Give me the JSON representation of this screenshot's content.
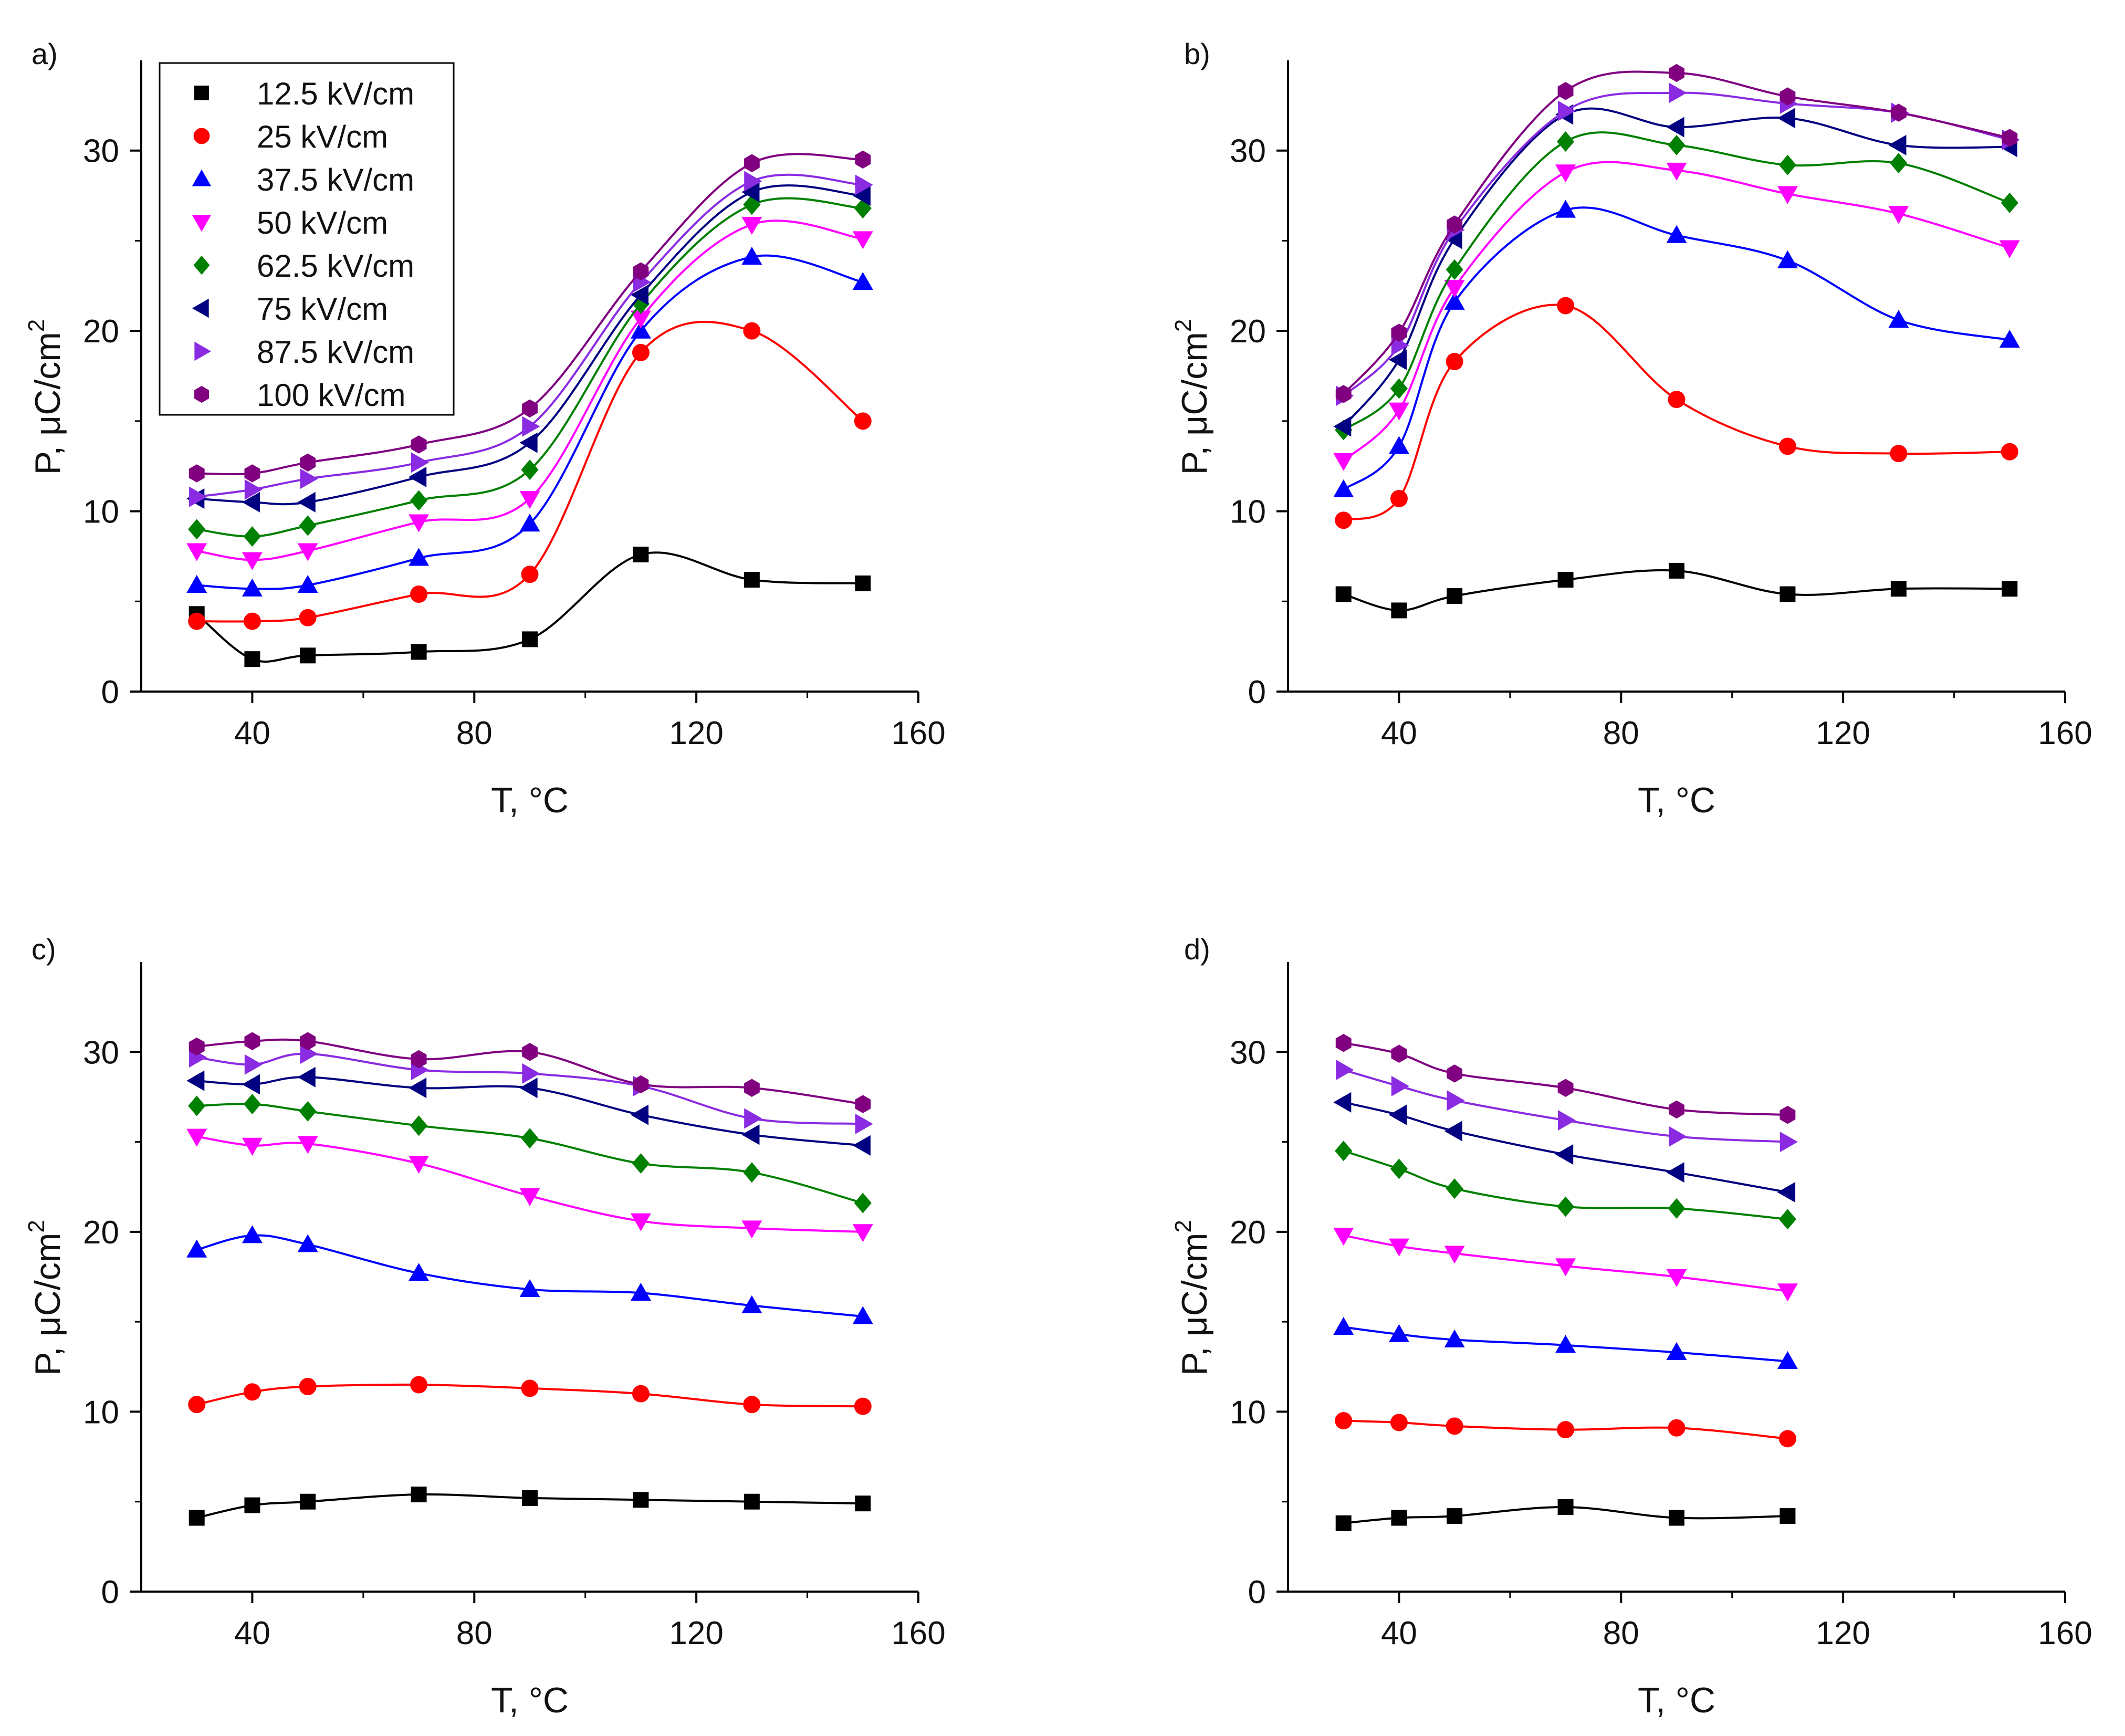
{
  "figure": {
    "legend_series": [
      {
        "name": "12.5 kV/cm",
        "color": "#000000",
        "marker": "square"
      },
      {
        "name": "25 kV/cm",
        "color": "#ff0000",
        "marker": "circle"
      },
      {
        "name": "37.5 kV/cm",
        "color": "#0000ff",
        "marker": "triangle-up"
      },
      {
        "name": "50 kV/cm",
        "color": "#ff00ff",
        "marker": "triangle-down"
      },
      {
        "name": "62.5 kV/cm",
        "color": "#008000",
        "marker": "diamond"
      },
      {
        "name": "75 kV/cm",
        "color": "#000080",
        "marker": "triangle-left"
      },
      {
        "name": "87.5 kV/cm",
        "color": "#8a2be2",
        "marker": "triangle-right"
      },
      {
        "name": "100 kV/cm",
        "color": "#800080",
        "marker": "hexagon"
      }
    ]
  },
  "chart_data": [
    {
      "panel": "a)",
      "type": "scatter",
      "xlabel": "T, °C",
      "ylabel": "P, μC/cm2",
      "xlim": [
        20,
        160
      ],
      "ylim": [
        0,
        35
      ],
      "xticks": [
        40,
        80,
        120,
        160
      ],
      "yticks": [
        0,
        10,
        20,
        30
      ],
      "legend": "top-left",
      "series": [
        {
          "name": "12.5 kV/cm",
          "x": [
            30,
            40,
            50,
            70,
            90,
            110,
            130,
            150
          ],
          "values": [
            4.3,
            1.8,
            2.0,
            2.2,
            2.9,
            7.6,
            6.2,
            6.0
          ]
        },
        {
          "name": "25 kV/cm",
          "x": [
            30,
            40,
            50,
            70,
            90,
            110,
            130,
            150
          ],
          "values": [
            3.9,
            3.9,
            4.1,
            5.4,
            6.5,
            18.8,
            20.0,
            15.0
          ]
        },
        {
          "name": "37.5 kV/cm",
          "x": [
            30,
            40,
            50,
            70,
            90,
            110,
            130,
            150
          ],
          "values": [
            5.9,
            5.7,
            5.9,
            7.4,
            9.3,
            20.0,
            24.1,
            22.7
          ]
        },
        {
          "name": "50 kV/cm",
          "x": [
            30,
            40,
            50,
            70,
            90,
            110,
            130,
            150
          ],
          "values": [
            7.8,
            7.3,
            7.8,
            9.4,
            10.7,
            20.7,
            25.9,
            25.1
          ]
        },
        {
          "name": "62.5 kV/cm",
          "x": [
            30,
            40,
            50,
            70,
            90,
            110,
            130,
            150
          ],
          "values": [
            9.0,
            8.6,
            9.2,
            10.6,
            12.3,
            21.5,
            27.0,
            26.8
          ]
        },
        {
          "name": "75 kV/cm",
          "x": [
            30,
            40,
            50,
            70,
            90,
            110,
            130,
            150
          ],
          "values": [
            10.7,
            10.5,
            10.5,
            11.9,
            13.8,
            22.0,
            27.7,
            27.5
          ]
        },
        {
          "name": "87.5 kV/cm",
          "x": [
            30,
            40,
            50,
            70,
            90,
            110,
            130,
            150
          ],
          "values": [
            10.8,
            11.2,
            11.8,
            12.7,
            14.7,
            22.7,
            28.3,
            28.1
          ]
        },
        {
          "name": "100 kV/cm",
          "x": [
            30,
            40,
            50,
            70,
            90,
            110,
            130,
            150
          ],
          "values": [
            12.1,
            12.1,
            12.7,
            13.7,
            15.7,
            23.3,
            29.3,
            29.5
          ]
        }
      ]
    },
    {
      "panel": "b)",
      "type": "scatter",
      "xlabel": "T, °C",
      "ylabel": "P, μC/cm2",
      "xlim": [
        20,
        160
      ],
      "ylim": [
        0,
        35
      ],
      "xticks": [
        40,
        80,
        120,
        160
      ],
      "yticks": [
        0,
        10,
        20,
        30
      ],
      "series": [
        {
          "name": "12.5 kV/cm",
          "x": [
            30,
            40,
            50,
            70,
            90,
            110,
            130,
            150
          ],
          "values": [
            5.4,
            4.5,
            5.3,
            6.2,
            6.7,
            5.4,
            5.7,
            5.7
          ]
        },
        {
          "name": "25 kV/cm",
          "x": [
            30,
            40,
            50,
            70,
            90,
            110,
            130,
            150
          ],
          "values": [
            9.5,
            10.7,
            18.3,
            21.4,
            16.2,
            13.6,
            13.2,
            13.3
          ]
        },
        {
          "name": "37.5 kV/cm",
          "x": [
            30,
            40,
            50,
            70,
            90,
            110,
            130,
            150
          ],
          "values": [
            11.2,
            13.6,
            21.6,
            26.7,
            25.3,
            23.9,
            20.6,
            19.5
          ]
        },
        {
          "name": "50 kV/cm",
          "x": [
            30,
            40,
            50,
            70,
            90,
            110,
            130,
            150
          ],
          "values": [
            12.8,
            15.6,
            22.4,
            28.8,
            28.9,
            27.6,
            26.5,
            24.6
          ]
        },
        {
          "name": "62.5 kV/cm",
          "x": [
            30,
            40,
            50,
            70,
            90,
            110,
            130,
            150
          ],
          "values": [
            14.5,
            16.8,
            23.4,
            30.5,
            30.3,
            29.2,
            29.3,
            27.1
          ]
        },
        {
          "name": "75 kV/cm",
          "x": [
            30,
            40,
            50,
            70,
            90,
            110,
            130,
            150
          ],
          "values": [
            14.7,
            18.4,
            25.1,
            32.0,
            31.3,
            31.8,
            30.3,
            30.2
          ]
        },
        {
          "name": "87.5 kV/cm",
          "x": [
            30,
            40,
            50,
            70,
            90,
            110,
            130,
            150
          ],
          "values": [
            16.4,
            19.2,
            25.6,
            32.2,
            33.2,
            32.6,
            32.1,
            30.6
          ]
        },
        {
          "name": "100 kV/cm",
          "x": [
            30,
            40,
            50,
            70,
            90,
            110,
            130,
            150
          ],
          "values": [
            16.5,
            19.9,
            25.9,
            33.3,
            34.3,
            33.0,
            32.1,
            30.7
          ]
        }
      ]
    },
    {
      "panel": "c)",
      "type": "scatter",
      "xlabel": "T, °C",
      "ylabel": "P, μC/cm2",
      "xlim": [
        20,
        160
      ],
      "ylim": [
        0,
        35
      ],
      "xticks": [
        40,
        80,
        120,
        160
      ],
      "yticks": [
        0,
        10,
        20,
        30
      ],
      "series": [
        {
          "name": "12.5 kV/cm",
          "x": [
            30,
            40,
            50,
            70,
            90,
            110,
            130,
            150
          ],
          "values": [
            4.1,
            4.8,
            5.0,
            5.4,
            5.2,
            5.1,
            5.0,
            4.9
          ]
        },
        {
          "name": "25 kV/cm",
          "x": [
            30,
            40,
            50,
            70,
            90,
            110,
            130,
            150
          ],
          "values": [
            10.4,
            11.1,
            11.4,
            11.5,
            11.3,
            11.0,
            10.4,
            10.3
          ]
        },
        {
          "name": "37.5 kV/cm",
          "x": [
            30,
            40,
            50,
            70,
            90,
            110,
            130,
            150
          ],
          "values": [
            19.0,
            19.8,
            19.3,
            17.7,
            16.8,
            16.6,
            15.9,
            15.3
          ]
        },
        {
          "name": "50 kV/cm",
          "x": [
            30,
            40,
            50,
            70,
            90,
            110,
            130,
            150
          ],
          "values": [
            25.3,
            24.8,
            24.9,
            23.8,
            22.0,
            20.6,
            20.2,
            20.0
          ]
        },
        {
          "name": "62.5 kV/cm",
          "x": [
            30,
            40,
            50,
            70,
            90,
            110,
            130,
            150
          ],
          "values": [
            27.0,
            27.1,
            26.7,
            25.9,
            25.2,
            23.8,
            23.3,
            21.6
          ]
        },
        {
          "name": "75 kV/cm",
          "x": [
            30,
            40,
            50,
            70,
            90,
            110,
            130,
            150
          ],
          "values": [
            28.4,
            28.2,
            28.6,
            28.0,
            28.0,
            26.5,
            25.4,
            24.8
          ]
        },
        {
          "name": "87.5 kV/cm",
          "x": [
            30,
            40,
            50,
            70,
            90,
            110,
            130,
            150
          ],
          "values": [
            29.7,
            29.3,
            29.9,
            29.0,
            28.8,
            28.1,
            26.3,
            26.0
          ]
        },
        {
          "name": "100 kV/cm",
          "x": [
            30,
            40,
            50,
            70,
            90,
            110,
            130,
            150
          ],
          "values": [
            30.3,
            30.6,
            30.6,
            29.6,
            30.0,
            28.2,
            28.0,
            27.1
          ]
        }
      ]
    },
    {
      "panel": "d)",
      "type": "scatter",
      "xlabel": "T, °C",
      "ylabel": "P, μC/cm2",
      "xlim": [
        20,
        160
      ],
      "ylim": [
        0,
        35
      ],
      "xticks": [
        40,
        80,
        120,
        160
      ],
      "yticks": [
        0,
        10,
        20,
        30
      ],
      "series": [
        {
          "name": "12.5 kV/cm",
          "x": [
            30,
            40,
            50,
            70,
            90,
            110
          ],
          "values": [
            3.8,
            4.1,
            4.2,
            4.7,
            4.1,
            4.2
          ]
        },
        {
          "name": "25 kV/cm",
          "x": [
            30,
            40,
            50,
            70,
            90,
            110
          ],
          "values": [
            9.5,
            9.4,
            9.2,
            9.0,
            9.1,
            8.5
          ]
        },
        {
          "name": "37.5 kV/cm",
          "x": [
            30,
            40,
            50,
            70,
            90,
            110
          ],
          "values": [
            14.7,
            14.3,
            14.0,
            13.7,
            13.3,
            12.8
          ]
        },
        {
          "name": "50 kV/cm",
          "x": [
            30,
            40,
            50,
            70,
            90,
            110
          ],
          "values": [
            19.8,
            19.2,
            18.8,
            18.1,
            17.5,
            16.7
          ]
        },
        {
          "name": "62.5 kV/cm",
          "x": [
            30,
            40,
            50,
            70,
            90,
            110
          ],
          "values": [
            24.5,
            23.5,
            22.4,
            21.4,
            21.3,
            20.7
          ]
        },
        {
          "name": "75 kV/cm",
          "x": [
            30,
            40,
            50,
            70,
            90,
            110
          ],
          "values": [
            27.2,
            26.5,
            25.6,
            24.3,
            23.3,
            22.2
          ]
        },
        {
          "name": "87.5 kV/cm",
          "x": [
            30,
            40,
            50,
            70,
            90,
            110
          ],
          "values": [
            29.0,
            28.1,
            27.3,
            26.2,
            25.3,
            25.0
          ]
        },
        {
          "name": "100 kV/cm",
          "x": [
            30,
            40,
            50,
            70,
            90,
            110
          ],
          "values": [
            30.5,
            29.9,
            28.8,
            28.0,
            26.8,
            26.5
          ]
        }
      ]
    }
  ]
}
